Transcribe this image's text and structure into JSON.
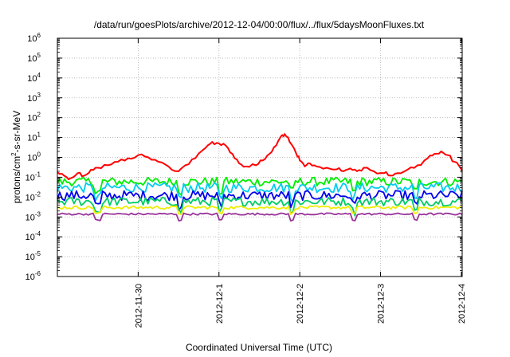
{
  "chart_data": {
    "type": "line",
    "title": "/data/run/goesPlots/archive/2012-12-04/00:00/flux/../flux/5daysMoonFluxes.txt",
    "xlabel": "Coordinated Universal Time (UTC)",
    "ylabel": "protons/cm²-s-sr-MeV",
    "ylabel_parts": {
      "prefix": "protons/cm",
      "sup": "2",
      "suffix": "-s-sr-MeV"
    },
    "y_scale": "log",
    "ylim": [
      1e-06,
      1000000.0
    ],
    "y_ticks": [
      {
        "base": "10",
        "exp": "-6",
        "value": 1e-06
      },
      {
        "base": "10",
        "exp": "-5",
        "value": 1e-05
      },
      {
        "base": "10",
        "exp": "-4",
        "value": 0.0001
      },
      {
        "base": "10",
        "exp": "-3",
        "value": 0.001
      },
      {
        "base": "10",
        "exp": "-2",
        "value": 0.01
      },
      {
        "base": "10",
        "exp": "-1",
        "value": 0.1
      },
      {
        "base": "10",
        "exp": "0",
        "value": 1
      },
      {
        "base": "10",
        "exp": "1",
        "value": 10
      },
      {
        "base": "10",
        "exp": "2",
        "value": 100
      },
      {
        "base": "10",
        "exp": "3",
        "value": 1000
      },
      {
        "base": "10",
        "exp": "4",
        "value": 10000
      },
      {
        "base": "10",
        "exp": "5",
        "value": 100000
      },
      {
        "base": "10",
        "exp": "6",
        "value": 1000000
      }
    ],
    "xlim": [
      "2012-11-29T00:00",
      "2012-12-04T00:15"
    ],
    "x_ticks": [
      "2012-11-30",
      "2012-12-1",
      "2012-12-2",
      "2012-12-3",
      "2012-12-4"
    ],
    "x_tick_dates": [
      "2012-11-30T00:00",
      "2012-12-01T00:00",
      "2012-12-02T00:00",
      "2012-12-03T00:00",
      "2012-12-04T00:00"
    ],
    "grid": true,
    "series": [
      {
        "color": "#ff0000",
        "points": [
          [
            "2012-11-29T00:00",
            0.18
          ],
          [
            "2012-11-29T02:00",
            0.12
          ],
          [
            "2012-11-29T04:00",
            0.09
          ],
          [
            "2012-11-29T06:00",
            0.16
          ],
          [
            "2012-11-29T08:00",
            0.12
          ],
          [
            "2012-11-29T10:00",
            0.24
          ],
          [
            "2012-11-29T12:00",
            0.3
          ],
          [
            "2012-11-29T15:00",
            0.4
          ],
          [
            "2012-11-29T18:00",
            0.6
          ],
          [
            "2012-11-29T21:00",
            0.9
          ],
          [
            "2012-11-30T00:00",
            1.3
          ],
          [
            "2012-11-30T03:00",
            1.0
          ],
          [
            "2012-11-30T06:00",
            0.6
          ],
          [
            "2012-11-30T09:00",
            0.35
          ],
          [
            "2012-11-30T12:00",
            0.2
          ],
          [
            "2012-11-30T14:00",
            0.4
          ],
          [
            "2012-11-30T17:00",
            0.9
          ],
          [
            "2012-11-30T20:00",
            3.0
          ],
          [
            "2012-11-30T22:00",
            6.0
          ],
          [
            "2012-12-01T00:00",
            5.0
          ],
          [
            "2012-12-01T02:00",
            4.0
          ],
          [
            "2012-12-01T04:00",
            1.5
          ],
          [
            "2012-12-01T06:00",
            0.5
          ],
          [
            "2012-12-01T08:00",
            0.35
          ],
          [
            "2012-12-01T11:00",
            0.4
          ],
          [
            "2012-12-01T13:00",
            0.7
          ],
          [
            "2012-12-01T15:00",
            1.5
          ],
          [
            "2012-12-01T17:00",
            4.0
          ],
          [
            "2012-12-01T18:30",
            12.0
          ],
          [
            "2012-12-01T19:30",
            15.0
          ],
          [
            "2012-12-01T21:00",
            6.0
          ],
          [
            "2012-12-01T23:00",
            1.5
          ],
          [
            "2012-12-02T00:00",
            0.7
          ],
          [
            "2012-12-02T01:30",
            0.35
          ],
          [
            "2012-12-02T03:00",
            0.5
          ],
          [
            "2012-12-02T05:00",
            0.35
          ],
          [
            "2012-12-02T08:00",
            0.3
          ],
          [
            "2012-12-02T11:00",
            0.25
          ],
          [
            "2012-12-02T13:00",
            0.2
          ],
          [
            "2012-12-02T15:00",
            0.28
          ],
          [
            "2012-12-02T17:00",
            0.2
          ],
          [
            "2012-12-02T19:00",
            0.3
          ],
          [
            "2012-12-02T22:00",
            0.2
          ],
          [
            "2012-12-03T01:00",
            0.16
          ],
          [
            "2012-12-03T03:00",
            0.12
          ],
          [
            "2012-12-03T05:00",
            0.16
          ],
          [
            "2012-12-03T08:00",
            0.24
          ],
          [
            "2012-12-03T11:00",
            0.4
          ],
          [
            "2012-12-03T14:00",
            0.9
          ],
          [
            "2012-12-03T16:00",
            1.5
          ],
          [
            "2012-12-03T18:00",
            2.0
          ],
          [
            "2012-12-03T20:00",
            1.3
          ],
          [
            "2012-12-03T22:00",
            0.6
          ],
          [
            "2012-12-04T00:00",
            0.25
          ],
          [
            "2012-12-04T00:15",
            0.22
          ]
        ]
      },
      {
        "color": "#00ee00",
        "typical": 0.06
      },
      {
        "color": "#00ccee",
        "typical": 0.03
      },
      {
        "color": "#0000ee",
        "typical": 0.012
      },
      {
        "color": "#00cc66",
        "typical": 0.006
      },
      {
        "color": "#eeee00",
        "typical": 0.003
      },
      {
        "color": "#993399",
        "typical": 0.0014
      }
    ]
  }
}
